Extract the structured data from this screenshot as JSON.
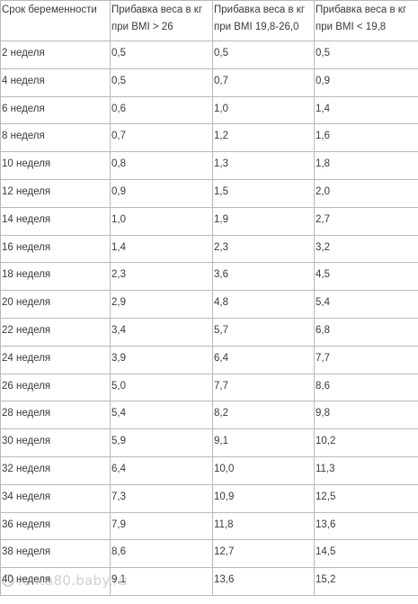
{
  "table": {
    "headers": [
      [
        "Срок беременности"
      ],
      [
        "Прибавка веса в кг",
        "при BMI > 26"
      ],
      [
        "Прибавка веса в кг",
        "при BMI  19,8-26,0"
      ],
      [
        "Прибавка веса в кг",
        "при BMI < 19,8"
      ]
    ],
    "rows": [
      [
        "2 неделя",
        "0,5",
        "0,5",
        "0,5"
      ],
      [
        "4 неделя",
        "0,5",
        "0,7",
        "0,9"
      ],
      [
        "6 неделя",
        "0,6",
        "1,0",
        "1,4"
      ],
      [
        "8 неделя",
        "0,7",
        "1,2",
        "1,6"
      ],
      [
        "10 неделя",
        "0,8",
        "1,3",
        "1,8"
      ],
      [
        "12 неделя",
        "0,9",
        "1,5",
        "2,0"
      ],
      [
        "14 неделя",
        "1,0",
        "1,9",
        "2,7"
      ],
      [
        "16 неделя",
        "1,4",
        "2,3",
        "3,2"
      ],
      [
        "18 неделя",
        "2,3",
        "3,6",
        "4,5"
      ],
      [
        "20 неделя",
        "2,9",
        "4,8",
        "5,4"
      ],
      [
        "22 неделя",
        "3,4",
        "5,7",
        "6,8"
      ],
      [
        "24 неделя",
        "3,9",
        "6,4",
        "7,7"
      ],
      [
        "26 неделя",
        "5,0",
        "7,7",
        "8,6"
      ],
      [
        "28 неделя",
        "5,4",
        "8,2",
        "9,8"
      ],
      [
        "30 неделя",
        "5,9",
        "9,1",
        "10,2"
      ],
      [
        "32 неделя",
        "6,4",
        "10,0",
        "11,3"
      ],
      [
        "34 неделя",
        "7,3",
        "10,9",
        "12,5"
      ],
      [
        "36 неделя",
        "7,9",
        "11,8",
        "13,6"
      ],
      [
        "38 неделя",
        "8,6",
        "12,7",
        "14,5"
      ],
      [
        "40 неделя",
        "9,1",
        "13,6",
        "15,2"
      ]
    ]
  },
  "watermark": {
    "text": "lenta80.baby.ru",
    "icon": "baby-ru-logo-icon"
  },
  "colors": {
    "text": "#3a3a3a",
    "border": "#b9b9b9",
    "background": "#ffffff"
  }
}
